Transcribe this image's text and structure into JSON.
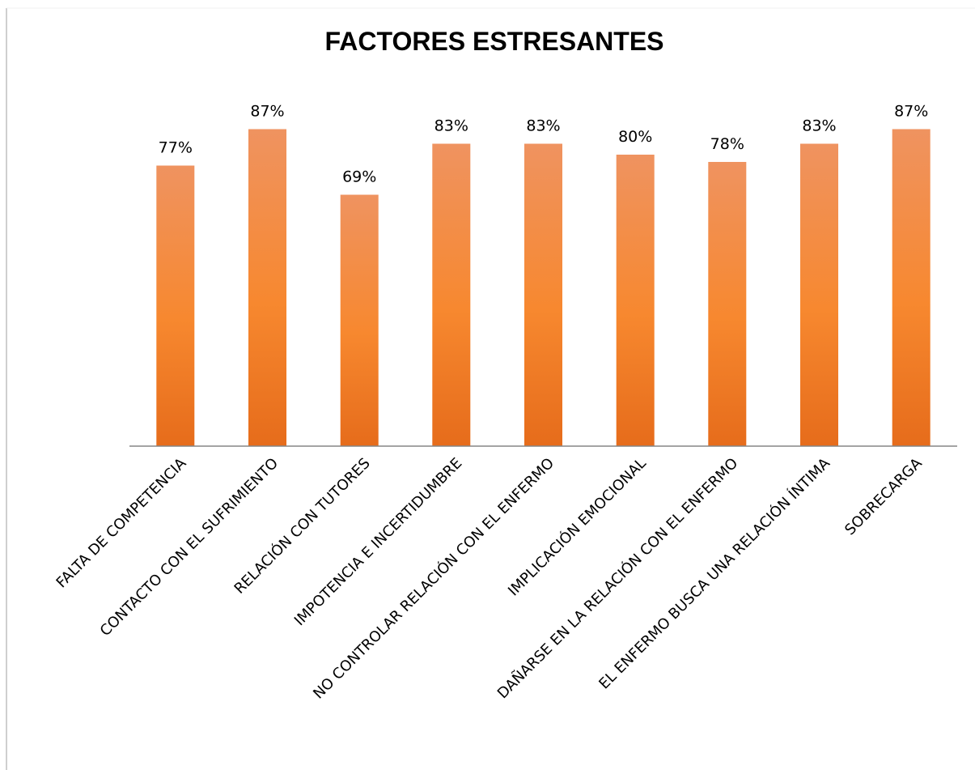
{
  "chart_data": {
    "type": "bar",
    "title": "FACTORES ESTRESANTES",
    "xlabel": "",
    "ylabel": "",
    "categories": [
      "FALTA DE COMPETENCIA",
      "CONTACTO CON EL SUFRIMIENTO",
      "RELACIÓN CON TUTORES",
      "IMPOTENCIA E INCERTIDUMBRE",
      "NO CONTROLAR RELACIÓN CON EL ENFERMO",
      "IMPLICACIÓN EMOCIONAL",
      "DAÑARSE EN LA RELACIÓN CON EL ENFERMO",
      "EL ENFERMO BUSCA UNA RELACIÓN ÍNTIMA",
      "SOBRECARGA"
    ],
    "values": [
      77,
      87,
      69,
      83,
      83,
      80,
      78,
      83,
      87
    ],
    "value_labels": [
      "77%",
      "87%",
      "69%",
      "83%",
      "83%",
      "80%",
      "78%",
      "83%",
      "87%"
    ],
    "unit": "%",
    "ylim": [
      0,
      100
    ],
    "grid": false,
    "legend": "none",
    "colors": {
      "bar_top": "#EF9360",
      "bar_mid": "#F7882F",
      "bar_bottom": "#E66C1B",
      "axis": "#868686",
      "frame": "#bfbfbf"
    }
  }
}
